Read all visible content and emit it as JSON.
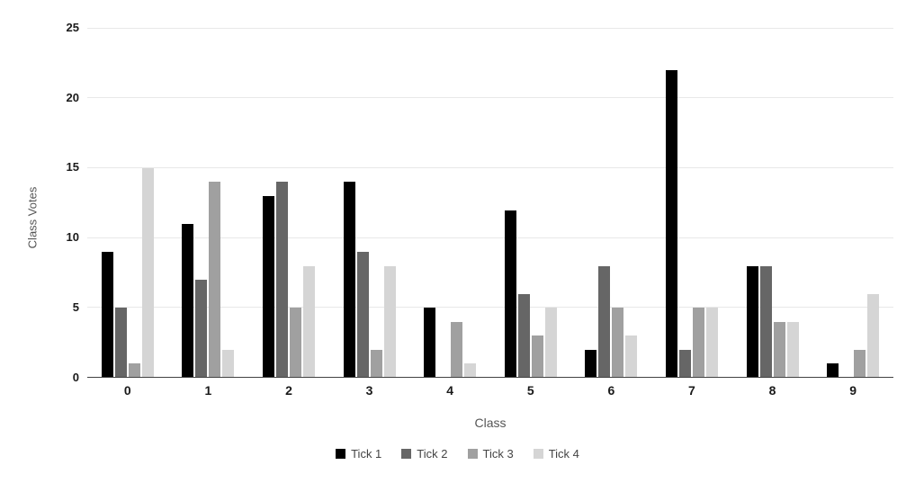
{
  "chart_data": {
    "type": "bar",
    "title": "",
    "xlabel": "Class",
    "ylabel": "Class Votes",
    "categories": [
      "0",
      "1",
      "2",
      "3",
      "4",
      "5",
      "6",
      "7",
      "8",
      "9"
    ],
    "series": [
      {
        "name": "Tick 1",
        "color": "#000000",
        "values": [
          9,
          11,
          13,
          14,
          5,
          12,
          2,
          22,
          8,
          1
        ]
      },
      {
        "name": "Tick 2",
        "color": "#666666",
        "values": [
          5,
          7,
          14,
          9,
          0,
          6,
          8,
          2,
          8,
          0
        ]
      },
      {
        "name": "Tick 3",
        "color": "#a0a0a0",
        "values": [
          1,
          14,
          5,
          2,
          4,
          3,
          5,
          5,
          4,
          2
        ]
      },
      {
        "name": "Tick 4",
        "color": "#d5d5d5",
        "values": [
          15,
          2,
          8,
          8,
          1,
          5,
          3,
          5,
          4,
          6
        ]
      }
    ],
    "ylim": [
      0,
      25
    ],
    "yticks": [
      0,
      5,
      10,
      15,
      20,
      25
    ],
    "grid": true,
    "legend_position": "bottom",
    "colors": {
      "background": "#ffffff",
      "gridline": "#e8e8e8",
      "axis_line": "#424242",
      "tick_label": "#1a1a1a",
      "axis_title": "#555555",
      "legend_text": "#444444"
    }
  }
}
